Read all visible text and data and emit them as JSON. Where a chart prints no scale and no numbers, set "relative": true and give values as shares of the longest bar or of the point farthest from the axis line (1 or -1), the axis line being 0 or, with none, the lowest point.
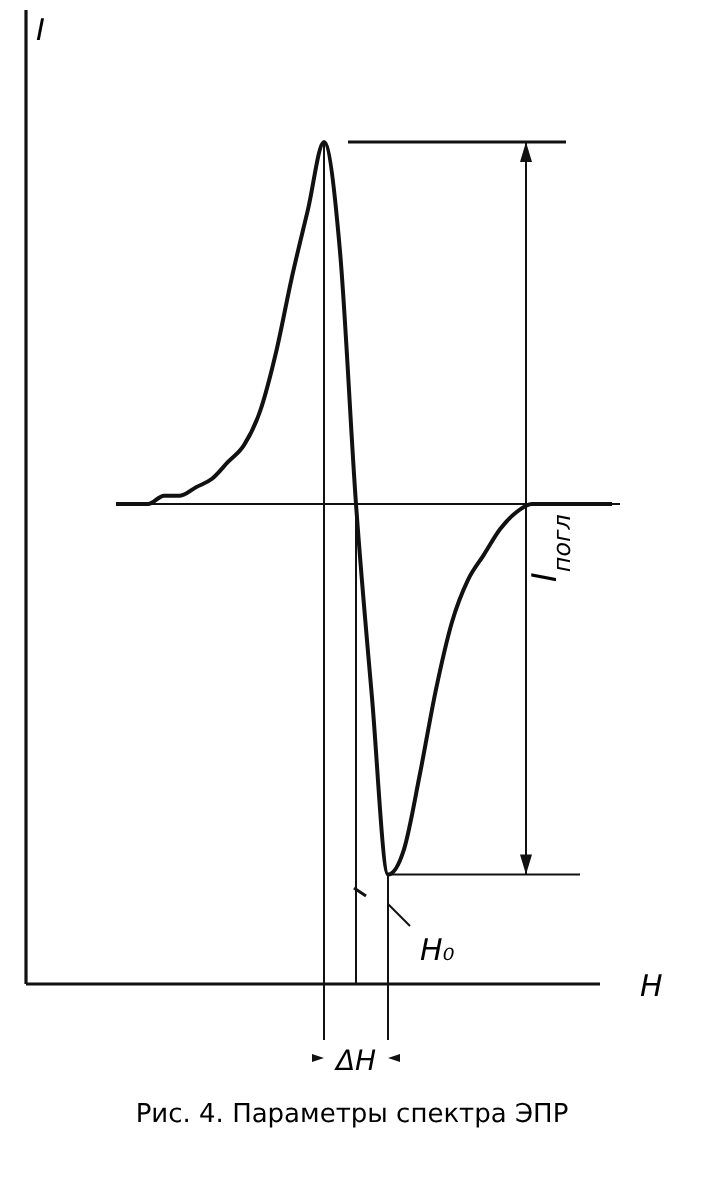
{
  "chart_data": {
    "type": "line",
    "relative": true,
    "xlabel": "H",
    "ylabel": "I",
    "color": "#111111",
    "categories": [
      null,
      null,
      null,
      null,
      null,
      null,
      null,
      null,
      null,
      null,
      null,
      null,
      null,
      null,
      null,
      null,
      null,
      null,
      null,
      null,
      null,
      null,
      null,
      null,
      null,
      null,
      null,
      null,
      null,
      null,
      null,
      null
    ],
    "values": [
      0.57,
      0.57,
      0.57,
      0.58,
      0.58,
      0.59,
      0.6,
      0.62,
      0.64,
      0.68,
      0.75,
      0.84,
      0.92,
      1,
      0.87,
      0.57,
      0.34,
      0.13,
      0.16,
      0.25,
      0.35,
      0.43,
      0.48,
      0.51,
      0.54,
      0.56,
      0.57,
      0.57,
      0.57,
      0.57,
      0.57,
      0.57
    ],
    "ref_lines": [
      {
        "axis": "y",
        "value": 0.57
      },
      {
        "axis": "y",
        "value": 1
      },
      {
        "axis": "y",
        "value": 0.13
      }
    ],
    "annotations": [
      "I$_{погл}$",
      "H₀",
      "ΔH",
      "Рис. 4. Параметры спектра ЭПР"
    ]
  }
}
